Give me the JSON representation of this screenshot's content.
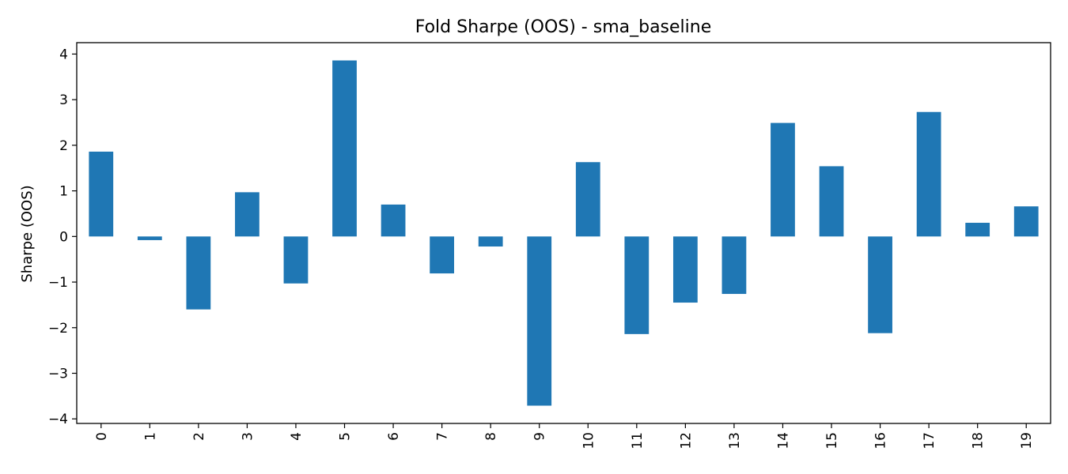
{
  "chart_data": {
    "type": "bar",
    "title": "Fold Sharpe (OOS) - sma_baseline",
    "xlabel": "",
    "ylabel": "Sharpe (OOS)",
    "categories": [
      "0",
      "1",
      "2",
      "3",
      "4",
      "5",
      "6",
      "7",
      "8",
      "9",
      "10",
      "11",
      "12",
      "13",
      "14",
      "15",
      "16",
      "17",
      "18",
      "19"
    ],
    "values": [
      1.86,
      -0.08,
      -1.6,
      0.97,
      -1.03,
      3.86,
      0.7,
      -0.81,
      -0.22,
      -3.71,
      1.63,
      -2.14,
      -1.45,
      -1.26,
      2.49,
      1.54,
      -2.12,
      2.73,
      0.3,
      0.66
    ],
    "ylim": [
      -4.1,
      4.25
    ],
    "yticks": [
      -4,
      -3,
      -2,
      -1,
      0,
      1,
      2,
      3,
      4
    ],
    "ytick_labels": [
      "−4",
      "−3",
      "−2",
      "−1",
      "0",
      "1",
      "2",
      "3",
      "4"
    ],
    "grid": false,
    "bar_color": "#1f77b4"
  }
}
